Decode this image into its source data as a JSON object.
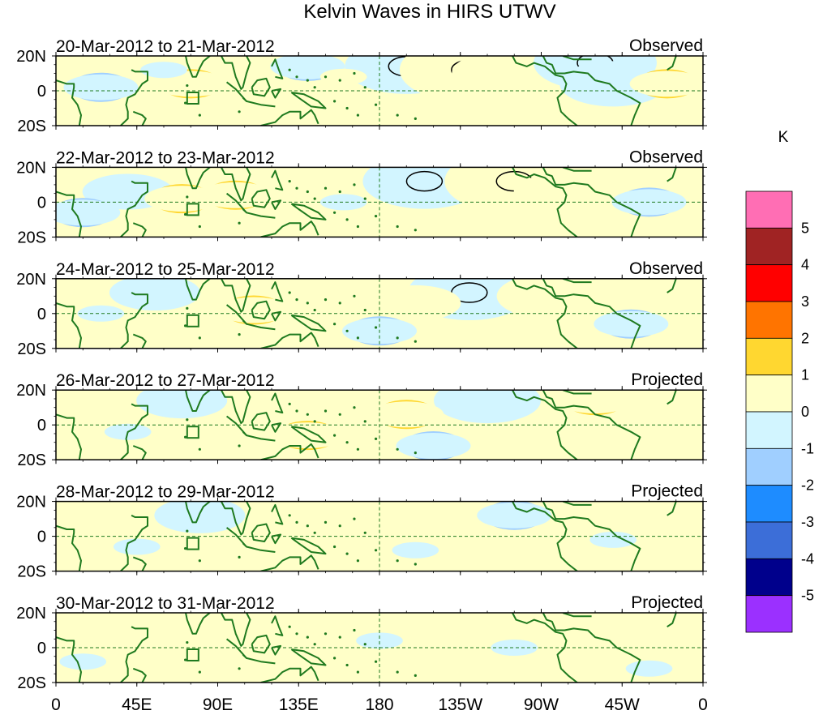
{
  "chart_data": {
    "type": "heatmap",
    "title": "Kelvin Waves in HIRS UTWV",
    "colorbar": {
      "unit_label": "K",
      "levels": [
        "5",
        "4",
        "3",
        "2",
        "1",
        "0",
        "-1",
        "-2",
        "-3",
        "-4",
        "-5"
      ],
      "colors": [
        "#ff6eb4",
        "#a02323",
        "#ff0000",
        "#ff7400",
        "#ffd730",
        "#ffffc8",
        "#d2f5ff",
        "#a0cfff",
        "#1e8cff",
        "#3c6ed8",
        "#00008c",
        "#9b30ff"
      ]
    },
    "axes": {
      "x_ticks": [
        "0",
        "45E",
        "90E",
        "135E",
        "180",
        "135W",
        "90W",
        "45W",
        "0"
      ],
      "x_tick_lon": [
        0,
        45,
        90,
        135,
        180,
        225,
        270,
        315,
        360
      ],
      "y_ticks": [
        "20N",
        "0",
        "20S"
      ],
      "y_tick_lat": [
        20,
        0,
        -20
      ],
      "lon_range": [
        0,
        360
      ],
      "lat_range": [
        -20,
        20
      ]
    },
    "panels": [
      {
        "date_range": "20-Mar-2012 to 21-Mar-2012",
        "status": "Observed",
        "anomalies": [
          {
            "lon": 195,
            "lat": 14,
            "value": -5
          },
          {
            "lon": 230,
            "lat": 12,
            "value": 6
          },
          {
            "lon": 250,
            "lat": 10,
            "value": 4
          },
          {
            "lon": 300,
            "lat": 16,
            "value": -5
          },
          {
            "lon": 310,
            "lat": 4,
            "value": -4
          },
          {
            "lon": 340,
            "lat": 4,
            "value": 2
          },
          {
            "lon": 25,
            "lat": 2,
            "value": -2
          },
          {
            "lon": 75,
            "lat": 4,
            "value": 2
          },
          {
            "lon": 100,
            "lat": -2,
            "value": 1
          },
          {
            "lon": 140,
            "lat": 14,
            "value": -2
          },
          {
            "lon": 160,
            "lat": 8,
            "value": 1
          },
          {
            "lon": 60,
            "lat": 12,
            "value": -1
          }
        ]
      },
      {
        "date_range": "22-Mar-2012 to 23-Mar-2012",
        "status": "Observed",
        "anomalies": [
          {
            "lon": 205,
            "lat": 12,
            "value": -5
          },
          {
            "lon": 255,
            "lat": 12,
            "value": 6
          },
          {
            "lon": 280,
            "lat": 6,
            "value": 3
          },
          {
            "lon": 120,
            "lat": 16,
            "value": 3
          },
          {
            "lon": 100,
            "lat": 4,
            "value": 2
          },
          {
            "lon": 40,
            "lat": 6,
            "value": -3
          },
          {
            "lon": 15,
            "lat": -6,
            "value": -2
          },
          {
            "lon": 160,
            "lat": 0,
            "value": -1
          },
          {
            "lon": 330,
            "lat": 0,
            "value": -2
          },
          {
            "lon": 70,
            "lat": 2,
            "value": 2
          }
        ]
      },
      {
        "date_range": "24-Mar-2012 to 25-Mar-2012",
        "status": "Observed",
        "anomalies": [
          {
            "lon": 230,
            "lat": 12,
            "value": -5
          },
          {
            "lon": 275,
            "lat": 10,
            "value": 4
          },
          {
            "lon": 150,
            "lat": 16,
            "value": 3
          },
          {
            "lon": 200,
            "lat": 6,
            "value": 3
          },
          {
            "lon": 110,
            "lat": 2,
            "value": 2
          },
          {
            "lon": 55,
            "lat": 12,
            "value": -3
          },
          {
            "lon": 25,
            "lat": 0,
            "value": -1
          },
          {
            "lon": 180,
            "lat": -10,
            "value": -2
          },
          {
            "lon": 320,
            "lat": -6,
            "value": -2
          },
          {
            "lon": 250,
            "lat": -10,
            "value": 1
          }
        ]
      },
      {
        "date_range": "26-Mar-2012 to 27-Mar-2012",
        "status": "Projected",
        "anomalies": [
          {
            "lon": 240,
            "lat": 14,
            "value": -4
          },
          {
            "lon": 130,
            "lat": 4,
            "value": 3
          },
          {
            "lon": 140,
            "lat": -6,
            "value": 2
          },
          {
            "lon": 195,
            "lat": 6,
            "value": 2
          },
          {
            "lon": 300,
            "lat": 14,
            "value": 2
          },
          {
            "lon": 70,
            "lat": 14,
            "value": -3
          },
          {
            "lon": 40,
            "lat": -4,
            "value": -1
          },
          {
            "lon": 210,
            "lat": -12,
            "value": -2
          },
          {
            "lon": 330,
            "lat": -2,
            "value": 1
          }
        ]
      },
      {
        "date_range": "28-Mar-2012 to 29-Mar-2012",
        "status": "Projected",
        "anomalies": [
          {
            "lon": 80,
            "lat": 12,
            "value": -3
          },
          {
            "lon": 255,
            "lat": 12,
            "value": -2
          },
          {
            "lon": 175,
            "lat": 4,
            "value": 1
          },
          {
            "lon": 120,
            "lat": -6,
            "value": 1
          },
          {
            "lon": 20,
            "lat": 10,
            "value": 1
          },
          {
            "lon": 200,
            "lat": -8,
            "value": -1
          },
          {
            "lon": 310,
            "lat": -2,
            "value": -1
          },
          {
            "lon": 45,
            "lat": -6,
            "value": -1
          }
        ]
      },
      {
        "date_range": "30-Mar-2012 to 31-Mar-2012",
        "status": "Projected",
        "anomalies": [
          {
            "lon": 45,
            "lat": 10,
            "value": 1
          },
          {
            "lon": 120,
            "lat": -2,
            "value": 1
          },
          {
            "lon": 255,
            "lat": 0,
            "value": -1
          },
          {
            "lon": 180,
            "lat": 4,
            "value": -1
          },
          {
            "lon": 300,
            "lat": 10,
            "value": 1
          },
          {
            "lon": 330,
            "lat": -12,
            "value": -1
          },
          {
            "lon": 15,
            "lat": -8,
            "value": -1
          }
        ]
      }
    ]
  },
  "colors": {
    "coast": "#1f7a1f",
    "equator": "#1f7a1f",
    "frame": "#000000"
  }
}
